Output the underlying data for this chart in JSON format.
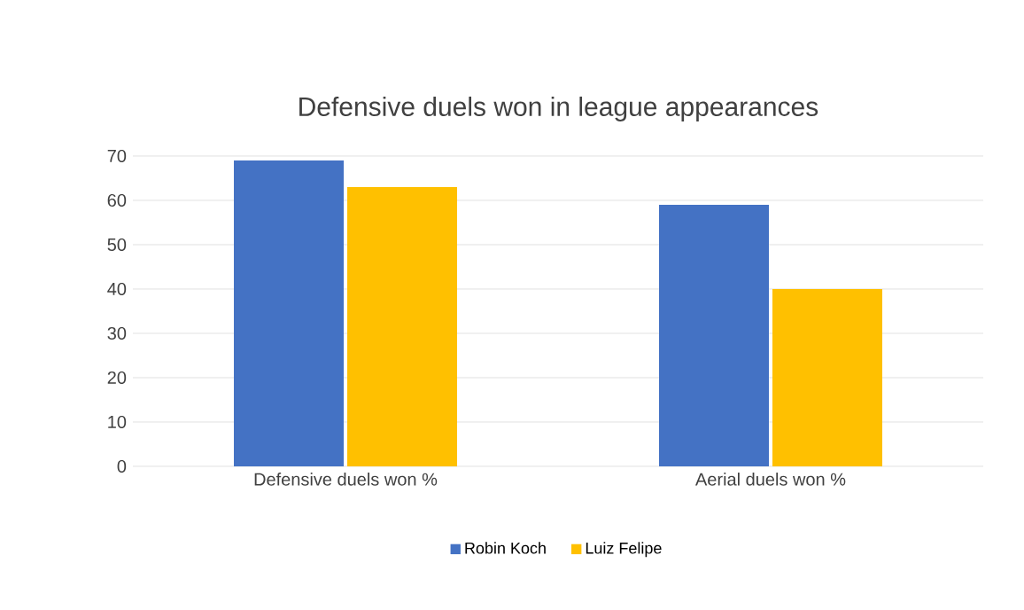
{
  "chart_data": {
    "type": "bar",
    "title": "Defensive duels won in league appearances",
    "categories": [
      "Defensive duels won %",
      "Aerial duels won %"
    ],
    "series": [
      {
        "name": "Robin Koch",
        "color": "#4472c4",
        "values": [
          69,
          59
        ]
      },
      {
        "name": "Luiz Felipe",
        "color": "#ffc000",
        "values": [
          63,
          40
        ]
      }
    ],
    "ylim": [
      0,
      70
    ],
    "yticks": [
      0,
      10,
      20,
      30,
      40,
      50,
      60,
      70
    ],
    "grid": "y",
    "legend": "bottom"
  }
}
